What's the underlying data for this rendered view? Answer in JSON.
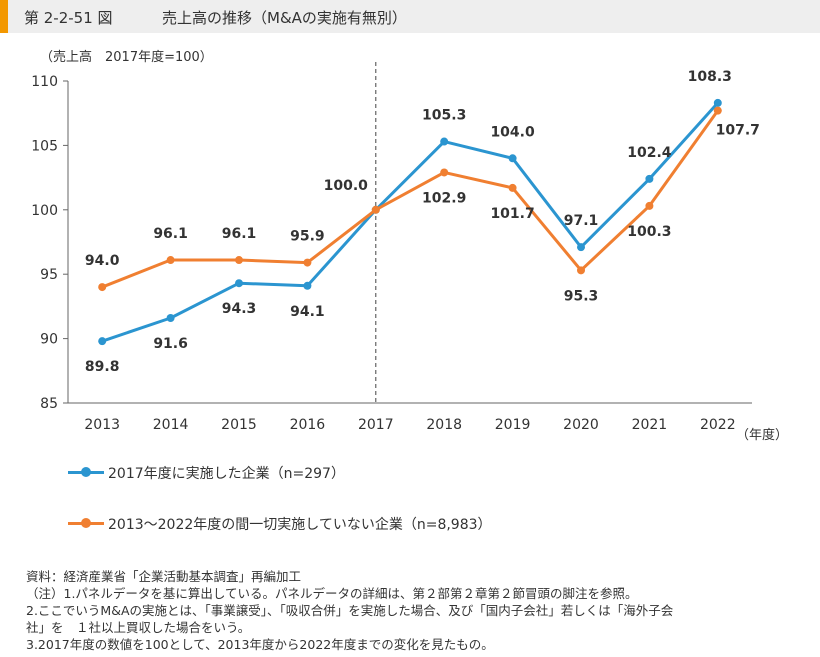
{
  "header": {
    "figure_number": "第 2-2-51 図",
    "title": "売上高の推移（M&Aの実施有無別）"
  },
  "chart_data": {
    "type": "line",
    "unit_label": "（売上高　2017年度=100）",
    "xlabel": "（年度）",
    "categories": [
      "2013",
      "2014",
      "2015",
      "2016",
      "2017",
      "2018",
      "2019",
      "2020",
      "2021",
      "2022"
    ],
    "y_ticks": [
      "110",
      "105",
      "100",
      "95",
      "90",
      "85"
    ],
    "ylim": [
      85,
      110
    ],
    "reference_line_category": "2017",
    "series": [
      {
        "name": "2017年度に実施した企業（n=297）",
        "color": "#2b95d0",
        "values": [
          89.8,
          91.6,
          94.3,
          94.1,
          100.0,
          105.3,
          104.0,
          97.1,
          102.4,
          108.3
        ],
        "labels": [
          "89.8",
          "91.6",
          "94.3",
          "94.1",
          "100.0",
          "105.3",
          "104.0",
          "97.1",
          "102.4",
          "108.3"
        ]
      },
      {
        "name": "2013～2022年度の間一切実施していない企業（n=8,983）",
        "color": "#f07f31",
        "values": [
          94.0,
          96.1,
          96.1,
          95.9,
          100.0,
          102.9,
          101.7,
          95.3,
          100.3,
          107.7
        ],
        "labels": [
          "94.0",
          "96.1",
          "96.1",
          "95.9",
          "",
          "102.9",
          "101.7",
          "95.3",
          "100.3",
          "107.7"
        ]
      }
    ]
  },
  "notes": {
    "source": "資料：経済産業省「企業活動基本調査」再編加工",
    "note1": "（注）1.パネルデータを基に算出している。パネルデータの詳細は、第２部第２章第２節冒頭の脚注を参照。",
    "note2": "2.ここでいうM&Aの実施とは、「事業譲受」、「吸収合併」を実施した場合、及び「国内子会社」若しくは「海外子会",
    "note2b": "社」を　１社以上買収した場合をいう。",
    "note3": "3.2017年度の数値を100として、2013年度から2022年度までの変化を見たもの。"
  }
}
